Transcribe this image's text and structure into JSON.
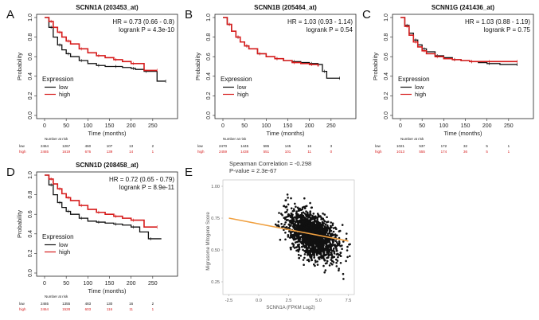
{
  "panels": [
    {
      "letter": "A",
      "title": "SCNN1A (203453_at)",
      "hr": "HR = 0.73 (0.66 - 0.8)",
      "logrank": "logrank P = 4.3e-10",
      "ylabel": "Probability",
      "xlabel": "Time (months)",
      "yticks": [
        "0.0",
        "0.2",
        "0.4",
        "0.6",
        "0.8",
        "1.0"
      ],
      "xticks": [
        "0",
        "50",
        "100",
        "150",
        "200",
        "250"
      ],
      "legend_title": "Expression",
      "legend": [
        "low",
        "high"
      ],
      "risk_header": "Number at risk",
      "risk_low": [
        "2464",
        "1267",
        "460",
        "107",
        "13",
        "2"
      ],
      "risk_high": [
        "2465",
        "1619",
        "676",
        "139",
        "14",
        "1"
      ]
    },
    {
      "letter": "B",
      "title": "SCNN1B (205464_at)",
      "hr": "HR = 1.03 (0.93 - 1.14)",
      "logrank": "logrank P = 0.54",
      "ylabel": "Probability",
      "xlabel": "Time (months)",
      "yticks": [
        "0.0",
        "0.2",
        "0.4",
        "0.6",
        "0.8",
        "1.0"
      ],
      "xticks": [
        "0",
        "50",
        "100",
        "150",
        "200",
        "250"
      ],
      "legend_title": "Expression",
      "legend": [
        "low",
        "high"
      ],
      "risk_header": "Number at risk",
      "risk_low": [
        "2470",
        "1445",
        "585",
        "145",
        "16",
        "3"
      ],
      "risk_high": [
        "2459",
        "1438",
        "551",
        "101",
        "11",
        "0"
      ]
    },
    {
      "letter": "C",
      "title": "SCNN1G (241436_at)",
      "hr": "HR = 1.03 (0.88 - 1.19)",
      "logrank": "logrank P = 0.75",
      "ylabel": "Probability",
      "xlabel": "Time (months)",
      "yticks": [
        "0.0",
        "0.2",
        "0.4",
        "0.6",
        "0.8",
        "1.0"
      ],
      "xticks": [
        "0",
        "50",
        "100",
        "150",
        "200",
        "250"
      ],
      "legend_title": "Expression",
      "legend": [
        "low",
        "high"
      ],
      "risk_header": "Number at risk",
      "risk_low": [
        "1021",
        "537",
        "172",
        "32",
        "5",
        "1"
      ],
      "risk_high": [
        "1013",
        "555",
        "174",
        "36",
        "5",
        "1"
      ]
    },
    {
      "letter": "D",
      "title": "SCNN1D (208458_at)",
      "hr": "HR = 0.72 (0.65 - 0.79)",
      "logrank": "logrank P = 8.9e-11",
      "ylabel": "Probability",
      "xlabel": "Time (months)",
      "yticks": [
        "0.0",
        "0.2",
        "0.4",
        "0.6",
        "0.8",
        "1.0"
      ],
      "xticks": [
        "0",
        "50",
        "100",
        "150",
        "200",
        "250"
      ],
      "legend_title": "Expression",
      "legend": [
        "low",
        "high"
      ],
      "risk_header": "Number at risk",
      "risk_low": [
        "2465",
        "1355",
        "483",
        "130",
        "16",
        "2"
      ],
      "risk_high": [
        "2464",
        "1528",
        "603",
        "116",
        "11",
        "1"
      ]
    }
  ],
  "panel_e": {
    "letter": "E",
    "stat1": "Spearman Correlation = -0.298",
    "stat2": "P-value = 2.3e-67",
    "ylabel": "Migrasome Mitogene Score",
    "xlabel": "SCNN1A (FPKM Log2)",
    "yticks": [
      "1.00",
      "0.75",
      "0.50",
      "0.25"
    ],
    "xticks": [
      "-2.5",
      "0.0",
      "2.5",
      "5.0",
      "7.5"
    ]
  },
  "colors": {
    "low": "#111111",
    "high": "#d61c1c",
    "fit": "#f0a040"
  },
  "chart_data": [
    {
      "type": "line",
      "title": "SCNN1A (203453_at)",
      "xlabel": "Time (months)",
      "ylabel": "Probability",
      "xlim": [
        0,
        300
      ],
      "ylim": [
        0,
        1
      ],
      "series": [
        {
          "name": "low",
          "x": [
            0,
            10,
            20,
            30,
            40,
            50,
            60,
            80,
            100,
            120,
            140,
            160,
            180,
            200,
            210,
            230,
            260,
            280
          ],
          "y": [
            1,
            0.9,
            0.8,
            0.72,
            0.67,
            0.63,
            0.6,
            0.56,
            0.53,
            0.51,
            0.5,
            0.5,
            0.49,
            0.48,
            0.47,
            0.45,
            0.35,
            0.35
          ]
        },
        {
          "name": "high",
          "x": [
            0,
            10,
            20,
            30,
            40,
            50,
            60,
            80,
            100,
            120,
            140,
            160,
            180,
            200,
            230,
            260
          ],
          "y": [
            1,
            0.96,
            0.9,
            0.85,
            0.8,
            0.76,
            0.73,
            0.68,
            0.64,
            0.61,
            0.59,
            0.57,
            0.55,
            0.53,
            0.46,
            0.46
          ]
        }
      ]
    },
    {
      "type": "line",
      "title": "SCNN1B (205464_at)",
      "xlabel": "Time (months)",
      "ylabel": "Probability",
      "xlim": [
        0,
        300
      ],
      "ylim": [
        0,
        1
      ],
      "series": [
        {
          "name": "low",
          "x": [
            0,
            10,
            20,
            30,
            40,
            50,
            60,
            80,
            100,
            120,
            140,
            160,
            180,
            200,
            220,
            230,
            240,
            270
          ],
          "y": [
            1,
            0.93,
            0.86,
            0.8,
            0.75,
            0.71,
            0.68,
            0.63,
            0.6,
            0.58,
            0.56,
            0.55,
            0.54,
            0.53,
            0.52,
            0.45,
            0.38,
            0.38
          ]
        },
        {
          "name": "high",
          "x": [
            0,
            10,
            20,
            30,
            40,
            50,
            60,
            80,
            100,
            120,
            140,
            160,
            180,
            200,
            220
          ],
          "y": [
            1,
            0.93,
            0.86,
            0.8,
            0.75,
            0.71,
            0.68,
            0.63,
            0.6,
            0.58,
            0.56,
            0.54,
            0.53,
            0.52,
            0.5
          ]
        }
      ]
    },
    {
      "type": "line",
      "title": "SCNN1G (241436_at)",
      "xlabel": "Time (months)",
      "ylabel": "Probability",
      "xlim": [
        0,
        300
      ],
      "ylim": [
        0,
        1
      ],
      "series": [
        {
          "name": "low",
          "x": [
            0,
            10,
            20,
            30,
            40,
            50,
            60,
            80,
            100,
            120,
            140,
            160,
            180,
            200,
            230,
            270
          ],
          "y": [
            1,
            0.92,
            0.84,
            0.77,
            0.72,
            0.68,
            0.65,
            0.61,
            0.59,
            0.57,
            0.56,
            0.55,
            0.54,
            0.53,
            0.52,
            0.52
          ]
        },
        {
          "name": "high",
          "x": [
            0,
            10,
            20,
            30,
            40,
            50,
            60,
            80,
            100,
            120,
            140,
            160,
            180,
            200,
            230,
            270
          ],
          "y": [
            1,
            0.91,
            0.82,
            0.75,
            0.7,
            0.66,
            0.63,
            0.6,
            0.58,
            0.57,
            0.56,
            0.55,
            0.55,
            0.55,
            0.55,
            0.55
          ]
        }
      ]
    },
    {
      "type": "line",
      "title": "SCNN1D (208458_at)",
      "xlabel": "Time (months)",
      "ylabel": "Probability",
      "xlim": [
        0,
        300
      ],
      "ylim": [
        0,
        1
      ],
      "series": [
        {
          "name": "low",
          "x": [
            0,
            10,
            20,
            30,
            40,
            50,
            60,
            80,
            100,
            120,
            140,
            160,
            180,
            200,
            220,
            240,
            270
          ],
          "y": [
            1,
            0.9,
            0.8,
            0.72,
            0.67,
            0.63,
            0.6,
            0.56,
            0.53,
            0.52,
            0.51,
            0.5,
            0.49,
            0.47,
            0.42,
            0.35,
            0.35
          ]
        },
        {
          "name": "high",
          "x": [
            0,
            10,
            20,
            30,
            40,
            50,
            60,
            80,
            100,
            120,
            140,
            160,
            180,
            200,
            230,
            260
          ],
          "y": [
            1,
            0.96,
            0.91,
            0.86,
            0.81,
            0.77,
            0.74,
            0.69,
            0.65,
            0.62,
            0.6,
            0.58,
            0.56,
            0.54,
            0.47,
            0.47
          ]
        }
      ]
    },
    {
      "type": "scatter",
      "xlabel": "SCNN1A (FPKM Log2)",
      "ylabel": "Migrasome Mitogene Score",
      "xlim": [
        -3,
        8
      ],
      "ylim": [
        0.15,
        1.05
      ],
      "trend": {
        "x": [
          -2.5,
          7.5
        ],
        "y": [
          0.75,
          0.57
        ]
      },
      "center": {
        "x": 4.5,
        "y": 0.62
      }
    }
  ]
}
